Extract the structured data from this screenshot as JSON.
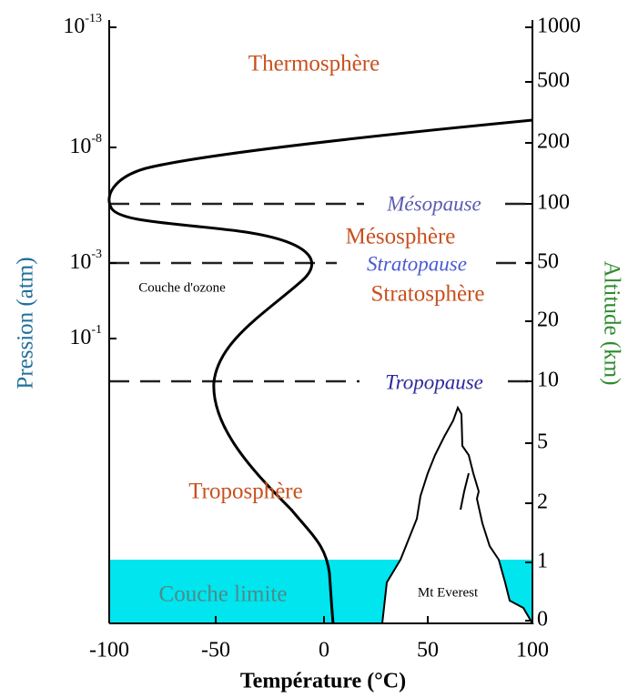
{
  "diagram": {
    "layers": {
      "thermosphere": "Thermosphère",
      "mesosphere": "Mésosphère",
      "stratosphere": "Stratosphère",
      "troposphere": "Troposphère",
      "boundary_layer": "Couche limite"
    },
    "boundaries": {
      "mesopause": "Mésopause",
      "stratopause": "Stratopause",
      "tropopause": "Tropopause"
    },
    "annotations": {
      "ozone": "Couche d'ozone",
      "everest": "Mt  Everest"
    },
    "x_axis": {
      "label": "Température (°C)",
      "ticks": [
        "-100",
        "-50",
        "0",
        "50",
        "100"
      ]
    },
    "left_axis": {
      "label": "Pression (atm)",
      "ticks": [
        {
          "base": "10",
          "exp": "-13"
        },
        {
          "base": "10",
          "exp": "-8"
        },
        {
          "base": "10",
          "exp": "-3"
        },
        {
          "base": "10",
          "exp": "-1"
        }
      ]
    },
    "right_axis": {
      "label": "Altitude (km)",
      "ticks": [
        "1000",
        "500",
        "200",
        "100",
        "50",
        "20",
        "10",
        "5",
        "2",
        "1",
        "0"
      ]
    }
  }
}
